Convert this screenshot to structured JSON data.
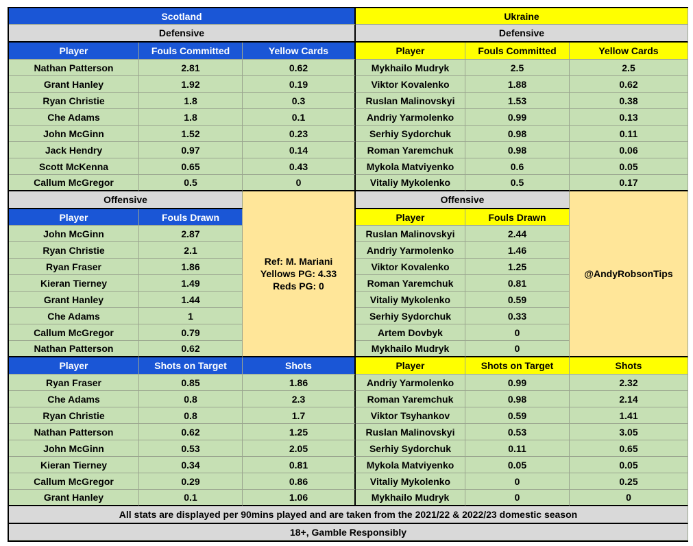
{
  "scotland": {
    "team": "Scotland",
    "defensive_label": "Defensive",
    "def_headers": [
      "Player",
      "Fouls Committed",
      "Yellow Cards"
    ],
    "def_rows": [
      [
        "Nathan Patterson",
        "2.81",
        "0.62"
      ],
      [
        "Grant Hanley",
        "1.92",
        "0.19"
      ],
      [
        "Ryan Christie",
        "1.8",
        "0.3"
      ],
      [
        "Che Adams",
        "1.8",
        "0.1"
      ],
      [
        "John McGinn",
        "1.52",
        "0.23"
      ],
      [
        "Jack Hendry",
        "0.97",
        "0.14"
      ],
      [
        "Scott McKenna",
        "0.65",
        "0.43"
      ],
      [
        "Callum McGregor",
        "0.5",
        "0"
      ]
    ],
    "offensive_label": "Offensive",
    "off_headers": [
      "Player",
      "Fouls Drawn"
    ],
    "off_rows": [
      [
        "John McGinn",
        "2.87"
      ],
      [
        "Ryan Christie",
        "2.1"
      ],
      [
        "Ryan Fraser",
        "1.86"
      ],
      [
        "Kieran Tierney",
        "1.49"
      ],
      [
        "Grant Hanley",
        "1.44"
      ],
      [
        "Che Adams",
        "1"
      ],
      [
        "Callum McGregor",
        "0.79"
      ],
      [
        "Nathan Patterson",
        "0.62"
      ]
    ],
    "shot_headers": [
      "Player",
      "Shots on Target",
      "Shots"
    ],
    "shot_rows": [
      [
        "Ryan Fraser",
        "0.85",
        "1.86"
      ],
      [
        "Che Adams",
        "0.8",
        "2.3"
      ],
      [
        "Ryan Christie",
        "0.8",
        "1.7"
      ],
      [
        "Nathan Patterson",
        "0.62",
        "1.25"
      ],
      [
        "John McGinn",
        "0.53",
        "2.05"
      ],
      [
        "Kieran Tierney",
        "0.34",
        "0.81"
      ],
      [
        "Callum McGregor",
        "0.29",
        "0.86"
      ],
      [
        "Grant Hanley",
        "0.1",
        "1.06"
      ]
    ]
  },
  "ukraine": {
    "team": "Ukraine",
    "defensive_label": "Defensive",
    "def_headers": [
      "Player",
      "Fouls Committed",
      "Yellow Cards"
    ],
    "def_rows": [
      [
        "Mykhailo Mudryk",
        "2.5",
        "2.5"
      ],
      [
        "Viktor Kovalenko",
        "1.88",
        "0.62"
      ],
      [
        "Ruslan Malinovskyi",
        "1.53",
        "0.38"
      ],
      [
        "Andriy Yarmolenko",
        "0.99",
        "0.13"
      ],
      [
        "Serhiy Sydorchuk",
        "0.98",
        "0.11"
      ],
      [
        "Roman Yaremchuk",
        "0.98",
        "0.06"
      ],
      [
        "Mykola Matviyenko",
        "0.6",
        "0.05"
      ],
      [
        "Vitaliy Mykolenko",
        "0.5",
        "0.17"
      ]
    ],
    "offensive_label": "Offensive",
    "off_headers": [
      "Player",
      "Fouls Drawn"
    ],
    "off_rows": [
      [
        "Ruslan Malinovskyi",
        "2.44"
      ],
      [
        "Andriy Yarmolenko",
        "1.46"
      ],
      [
        "Viktor Kovalenko",
        "1.25"
      ],
      [
        "Roman Yaremchuk",
        "0.81"
      ],
      [
        "Vitaliy Mykolenko",
        "0.59"
      ],
      [
        "Serhiy Sydorchuk",
        "0.33"
      ],
      [
        "Artem Dovbyk",
        "0"
      ],
      [
        "Mykhailo Mudryk",
        "0"
      ]
    ],
    "shot_headers": [
      "Player",
      "Shots on Target",
      "Shots"
    ],
    "shot_rows": [
      [
        "Andriy Yarmolenko",
        "0.99",
        "2.32"
      ],
      [
        "Roman Yaremchuk",
        "0.98",
        "2.14"
      ],
      [
        "Viktor Tsyhankov",
        "0.59",
        "1.41"
      ],
      [
        "Ruslan Malinovskyi",
        "0.53",
        "3.05"
      ],
      [
        "Serhiy Sydorchuk",
        "0.11",
        "0.65"
      ],
      [
        "Mykola Matviyenko",
        "0.05",
        "0.05"
      ],
      [
        "Vitaliy Mykolenko",
        "0",
        "0.25"
      ],
      [
        "Mykhailo Mudryk",
        "0",
        "0"
      ]
    ]
  },
  "referee": {
    "line1": "Ref: M. Mariani",
    "line2": "Yellows PG: 4.33",
    "line3": "Reds PG: 0"
  },
  "handle": "@AndyRobsonTips",
  "footer": {
    "note": "All stats are displayed per 90mins played and are taken from the 2021/22 & 2022/23 domestic season",
    "disclaimer": "18+, Gamble Responsibly"
  },
  "colors": {
    "scotland_header": "#1a56d6",
    "ukraine_header": "#ffff00",
    "section_gray": "#d9d9d9",
    "data_green": "#c6e0b4",
    "info_tan": "#ffe699"
  }
}
